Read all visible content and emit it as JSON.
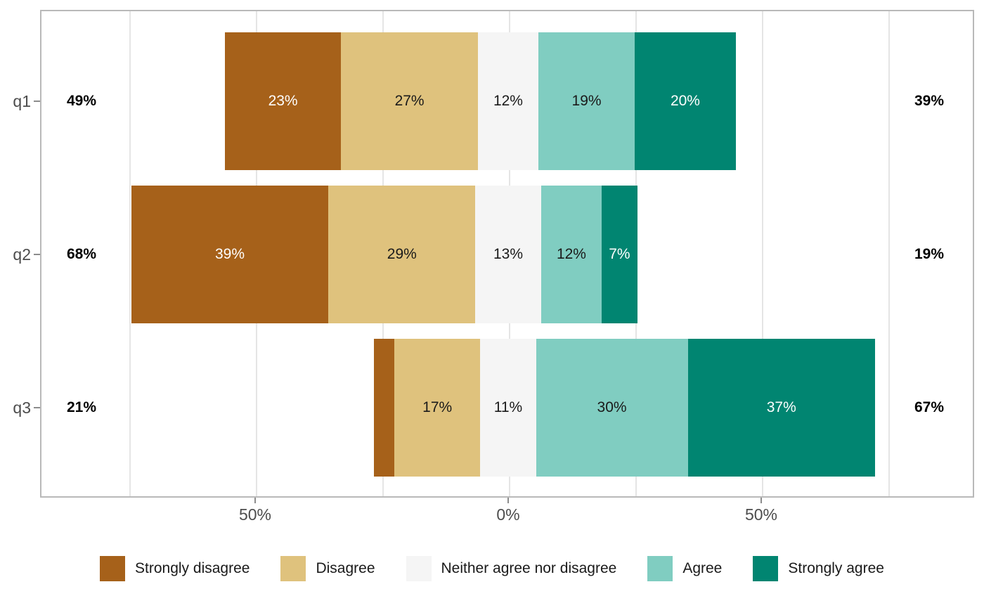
{
  "chart_data": {
    "type": "bar",
    "subtype": "diverging-stacked-likert",
    "title": "",
    "categories": [
      "Strongly disagree",
      "Disagree",
      "Neither agree nor disagree",
      "Agree",
      "Strongly agree"
    ],
    "colors": [
      "#A6611A",
      "#DFC27D",
      "#F5F5F5",
      "#80CDC1",
      "#018571"
    ],
    "segment_label_colors": [
      "#FFFFFF",
      "#1A1A1A",
      "#1A1A1A",
      "#1A1A1A",
      "#FFFFFF"
    ],
    "rows": [
      {
        "label": "q1",
        "low_total": "49%",
        "high_total": "39%",
        "values": [
          23,
          27,
          12,
          19,
          20
        ],
        "value_labels": [
          "23%",
          "27%",
          "12%",
          "19%",
          "20%"
        ]
      },
      {
        "label": "q2",
        "low_total": "68%",
        "high_total": "19%",
        "values": [
          39,
          29,
          13,
          12,
          7
        ],
        "value_labels": [
          "39%",
          "29%",
          "13%",
          "12%",
          "7%"
        ]
      },
      {
        "label": "q3",
        "low_total": "21%",
        "high_total": "67%",
        "values": [
          4,
          17,
          11,
          30,
          37
        ],
        "value_labels": [
          "",
          "17%",
          "11%",
          "30%",
          "37%"
        ]
      }
    ],
    "x_axis": {
      "tick_labels": [
        "50%",
        "0%",
        "50%"
      ],
      "tick_values": [
        -50,
        0,
        50
      ],
      "gridline_values": [
        -75,
        -50,
        -25,
        0,
        25,
        50,
        75
      ],
      "centered_on_zero": true,
      "neutral_split_at_zero": true
    },
    "legend": {
      "position": "bottom",
      "entries": [
        "Strongly disagree",
        "Disagree",
        "Neither agree nor disagree",
        "Agree",
        "Strongly agree"
      ]
    },
    "ui_colors": {
      "panel_border": "#b9b9b9",
      "gridline": "#e5e5e5",
      "axis_text": "#4d4d4d",
      "total_text": "#000000",
      "legend_text": "#1a1a1a",
      "background": "#ffffff"
    }
  }
}
